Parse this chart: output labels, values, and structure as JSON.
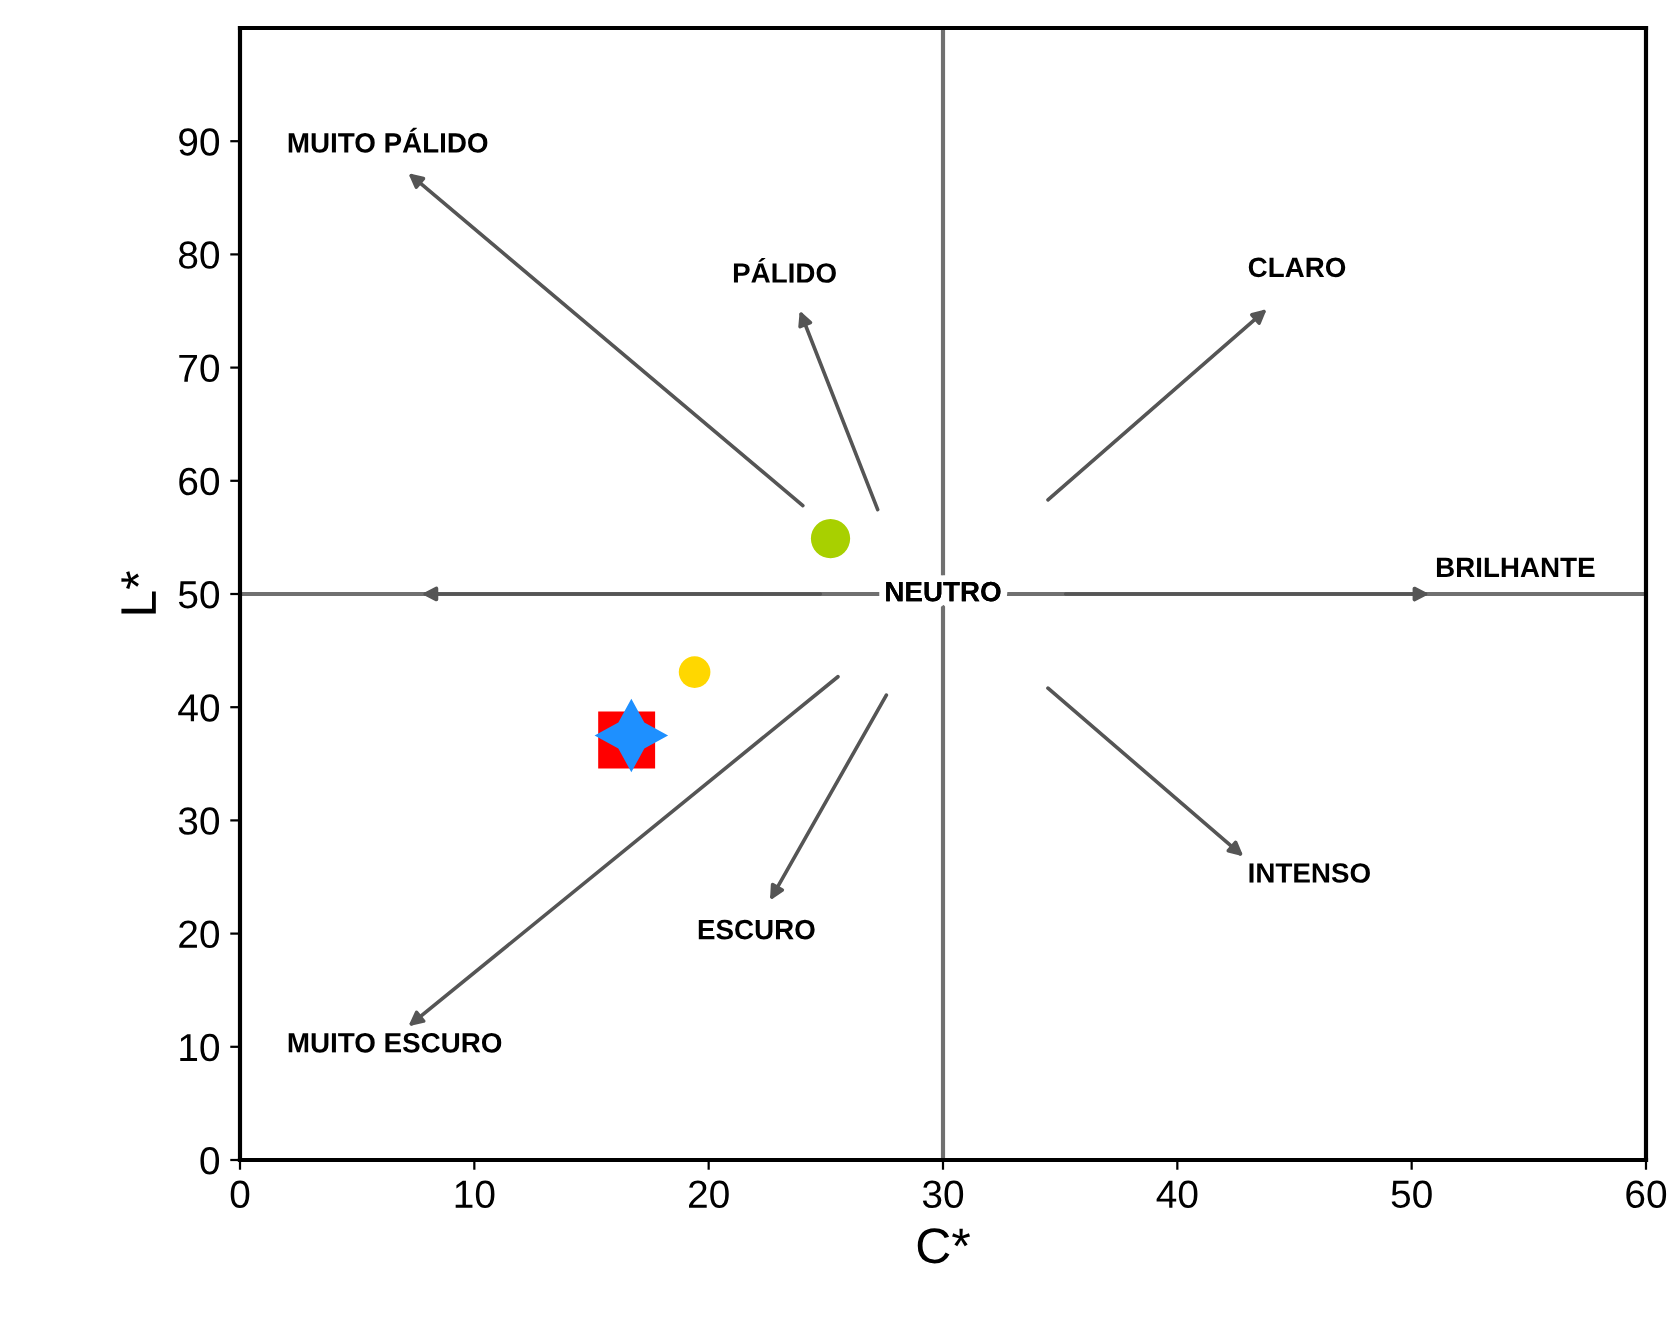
{
  "chart_data": {
    "type": "scatter",
    "xlabel": "C*",
    "ylabel": "L*",
    "xlim": [
      0,
      60
    ],
    "ylim": [
      0,
      100
    ],
    "xticks": [
      0,
      10,
      20,
      30,
      40,
      50,
      60
    ],
    "yticks": [
      0,
      10,
      20,
      30,
      40,
      50,
      60,
      70,
      80,
      90
    ],
    "grid": false,
    "series": [
      {
        "color": "#a8d000",
        "marker": "circle",
        "x": [
          25.2
        ],
        "values": [
          54.9
        ]
      },
      {
        "color": "#ffd700",
        "marker": "circle",
        "x": [
          19.4
        ],
        "values": [
          43.1
        ]
      },
      {
        "color": "#ff0000",
        "marker": "square",
        "x": [
          16.5
        ],
        "values": [
          37.1
        ]
      },
      {
        "color": "#1e90ff",
        "marker": "star",
        "x": [
          16.7
        ],
        "values": [
          37.5
        ]
      }
    ],
    "ref_lines": [
      {
        "axis": "x",
        "value": 30,
        "color": "#707070"
      },
      {
        "axis": "y",
        "value": 50,
        "color": "#707070"
      }
    ],
    "annotations": [
      "NEUTRO",
      "MUITO PÁLIDO",
      "PÁLIDO",
      "CLARO",
      "BRILHANTE",
      "INTENSO",
      "ESCURO",
      "MUITO ESCURO"
    ]
  }
}
